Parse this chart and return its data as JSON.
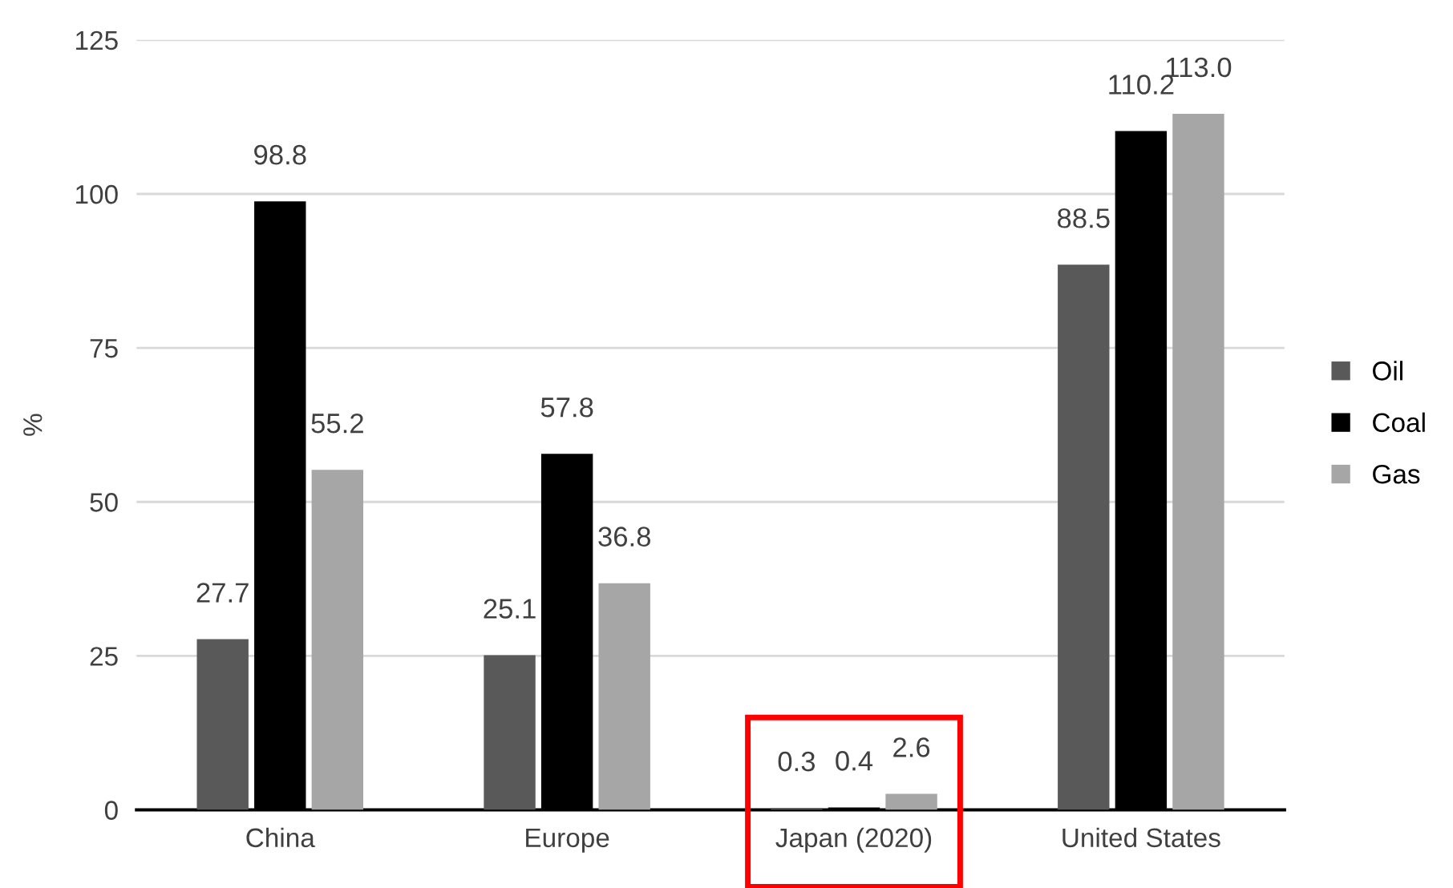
{
  "chart_data": {
    "type": "bar",
    "ylabel": "%",
    "categories": [
      "China",
      "Europe",
      "Japan (2020)",
      "United States"
    ],
    "series": [
      {
        "name": "Oil",
        "color": "#595959",
        "values": [
          27.7,
          25.1,
          0.3,
          88.5
        ],
        "value_labels": [
          "27.7",
          "25.1",
          "0.3",
          "88.5"
        ]
      },
      {
        "name": "Coal",
        "color": "#000000",
        "values": [
          98.8,
          57.8,
          0.4,
          110.2
        ],
        "value_labels": [
          "98.8",
          "57.8",
          "0.4",
          "110.2"
        ]
      },
      {
        "name": "Gas",
        "color": "#a6a6a6",
        "values": [
          55.2,
          36.8,
          2.6,
          113.0
        ],
        "value_labels": [
          "55.2",
          "36.8",
          "2.6",
          "113.0"
        ]
      }
    ],
    "ylim": [
      0,
      125
    ],
    "yticks": [
      0,
      25,
      50,
      75,
      100,
      125
    ],
    "grid": "y",
    "legend": "right"
  }
}
